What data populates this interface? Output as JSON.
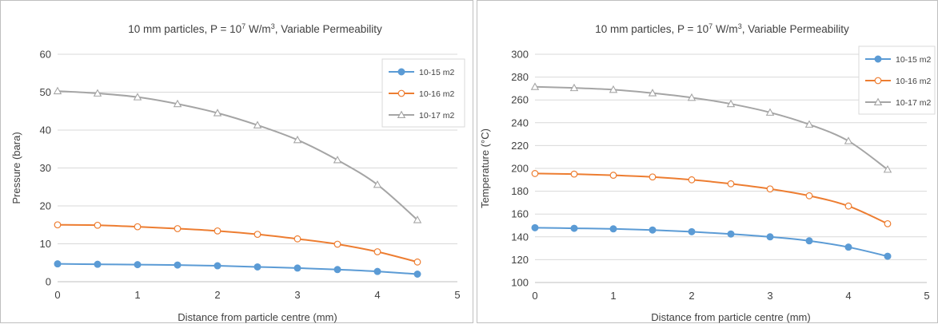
{
  "chart_data": [
    {
      "type": "line",
      "title": "10 mm particles, P = 10⁷ W/m³, Variable Permeability",
      "xlabel": "Distance from particle centre (mm)",
      "ylabel": "Pressure (bara)",
      "xlim": [
        0,
        5
      ],
      "ylim": [
        0,
        60
      ],
      "xticks": [
        0,
        1,
        2,
        3,
        4,
        5
      ],
      "yticks": [
        0,
        10,
        20,
        30,
        40,
        50,
        60
      ],
      "grid": true,
      "legend_position": "top-right",
      "x": [
        0,
        0.5,
        1,
        1.5,
        2,
        2.5,
        3,
        3.5,
        4,
        4.5
      ],
      "series": [
        {
          "name": "10-15 m2",
          "color": "#5b9bd5",
          "marker": "filled-circle",
          "values": [
            4.7,
            4.6,
            4.5,
            4.4,
            4.2,
            3.9,
            3.6,
            3.2,
            2.7,
            2.0
          ]
        },
        {
          "name": "10-16 m2",
          "color": "#ed7d31",
          "marker": "open-circle",
          "values": [
            15.0,
            14.9,
            14.5,
            14.0,
            13.4,
            12.5,
            11.3,
            9.9,
            7.9,
            5.2
          ]
        },
        {
          "name": "10-17 m2",
          "color": "#a5a5a5",
          "marker": "open-triangle",
          "values": [
            50.3,
            49.7,
            48.7,
            46.9,
            44.5,
            41.3,
            37.4,
            32.1,
            25.6,
            16.3
          ]
        }
      ]
    },
    {
      "type": "line",
      "title": "10 mm particles, P = 10⁷ W/m³, Variable Permeability",
      "xlabel": "Distance from particle centre (mm)",
      "ylabel": "Temperature (°C)",
      "xlim": [
        0,
        5
      ],
      "ylim": [
        100,
        300
      ],
      "xticks": [
        0,
        1,
        2,
        3,
        4,
        5
      ],
      "yticks": [
        100,
        120,
        140,
        160,
        180,
        200,
        220,
        240,
        260,
        280,
        300
      ],
      "grid": true,
      "legend_position": "top-right",
      "x": [
        0,
        0.5,
        1,
        1.5,
        2,
        2.5,
        3,
        3.5,
        4,
        4.5
      ],
      "series": [
        {
          "name": "10-15 m2",
          "color": "#5b9bd5",
          "marker": "filled-circle",
          "values": [
            148,
            147.5,
            147,
            146,
            144.5,
            142.5,
            140,
            136.5,
            131,
            123
          ]
        },
        {
          "name": "10-16 m2",
          "color": "#ed7d31",
          "marker": "open-circle",
          "values": [
            195.5,
            195,
            194,
            192.5,
            190,
            186.5,
            182,
            176,
            167,
            151.5
          ]
        },
        {
          "name": "10-17 m2",
          "color": "#a5a5a5",
          "marker": "open-triangle",
          "values": [
            271.5,
            270.5,
            269,
            266,
            262,
            256.5,
            249,
            238.5,
            224,
            199
          ]
        }
      ]
    }
  ]
}
